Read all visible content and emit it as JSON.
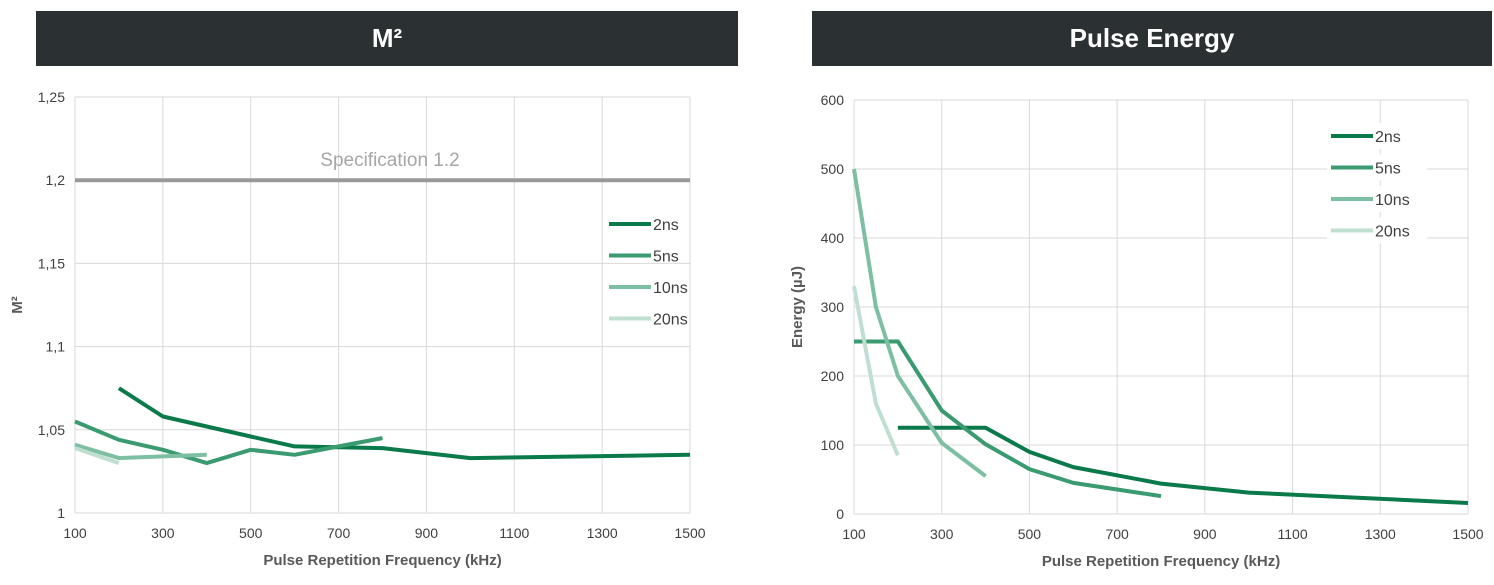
{
  "colors": {
    "header_bg": "#2b3133",
    "header_text": "#ffffff",
    "grid": "#d9d9d9",
    "spec_line": "#999999",
    "s2ns": "#0b7a4b",
    "s5ns": "#3a9a70",
    "s10ns": "#7dbfa2",
    "s20ns": "#bfe0d1"
  },
  "chart_data": [
    {
      "type": "line",
      "title": "M²",
      "xlabel": "Pulse Repetition Frequency (kHz)",
      "ylabel": "M²",
      "xlim": [
        100,
        1500
      ],
      "ylim": [
        1,
        1.25
      ],
      "xticks": [
        100,
        300,
        500,
        700,
        900,
        1100,
        1300,
        1500
      ],
      "xtick_labels": [
        "100",
        "300",
        "500",
        "700",
        "900",
        "1100",
        "1300",
        "1500"
      ],
      "yticks": [
        1,
        1.05,
        1.1,
        1.15,
        1.2,
        1.25
      ],
      "ytick_labels": [
        "1",
        "1,05",
        "1,1",
        "1,15",
        "1,2",
        "1,25"
      ],
      "reference_line": {
        "y": 1.2,
        "label": "Specification 1.2"
      },
      "legend_position": "right",
      "series": [
        {
          "name": "2ns",
          "x": [
            200,
            300,
            400,
            500,
            600,
            800,
            1000,
            1500
          ],
          "y": [
            1.075,
            1.058,
            1.052,
            1.046,
            1.04,
            1.039,
            1.033,
            1.035
          ]
        },
        {
          "name": "5ns",
          "x": [
            100,
            200,
            300,
            400,
            500,
            600,
            700,
            800
          ],
          "y": [
            1.055,
            1.044,
            1.038,
            1.03,
            1.038,
            1.035,
            1.04,
            1.045
          ]
        },
        {
          "name": "10ns",
          "x": [
            100,
            200,
            300,
            400
          ],
          "y": [
            1.041,
            1.033,
            1.034,
            1.035
          ]
        },
        {
          "name": "20ns",
          "x": [
            100,
            200
          ],
          "y": [
            1.039,
            1.03
          ]
        }
      ]
    },
    {
      "type": "line",
      "title": "Pulse Energy",
      "xlabel": "Pulse Repetition Frequency (kHz)",
      "ylabel": "Energy (µJ)",
      "xlim": [
        100,
        1500
      ],
      "ylim": [
        0,
        600
      ],
      "xticks": [
        100,
        300,
        500,
        700,
        900,
        1100,
        1300,
        1500
      ],
      "xtick_labels": [
        "100",
        "300",
        "500",
        "700",
        "900",
        "1100",
        "1300",
        "1500"
      ],
      "yticks": [
        0,
        100,
        200,
        300,
        400,
        500,
        600
      ],
      "ytick_labels": [
        "0",
        "100",
        "200",
        "300",
        "400",
        "500",
        "600"
      ],
      "legend_position": "top-right",
      "series": [
        {
          "name": "2ns",
          "x": [
            200,
            400,
            500,
            600,
            800,
            1000,
            1500
          ],
          "y": [
            125,
            125,
            90,
            68,
            44,
            31,
            16
          ]
        },
        {
          "name": "5ns",
          "x": [
            100,
            200,
            300,
            400,
            500,
            600,
            800
          ],
          "y": [
            250,
            250,
            150,
            101,
            65,
            45,
            26
          ]
        },
        {
          "name": "10ns",
          "x": [
            100,
            150,
            200,
            300,
            400
          ],
          "y": [
            500,
            300,
            200,
            103,
            55
          ]
        },
        {
          "name": "20ns",
          "x": [
            100,
            150,
            200
          ],
          "y": [
            330,
            160,
            85
          ]
        }
      ]
    }
  ]
}
